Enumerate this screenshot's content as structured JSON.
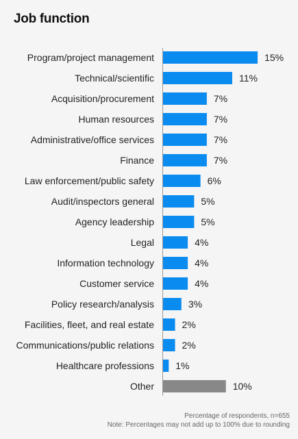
{
  "chart_data": {
    "type": "bar",
    "orientation": "horizontal",
    "title": "Job function",
    "categories": [
      "Program/project management",
      "Technical/scientific",
      "Acquisition/procurement",
      "Human resources",
      "Administrative/office services",
      "Finance",
      "Law enforcement/public safety",
      "Audit/inspectors general",
      "Agency leadership",
      "Legal",
      "Information technology",
      "Customer service",
      "Policy research/analysis",
      "Facilities, fleet, and real estate",
      "Communications/public relations",
      "Healthcare professions",
      "Other"
    ],
    "values": [
      15,
      11,
      7,
      7,
      7,
      7,
      6,
      5,
      5,
      4,
      4,
      4,
      3,
      2,
      2,
      1,
      10
    ],
    "value_labels": [
      "15%",
      "11%",
      "7%",
      "7%",
      "7%",
      "7%",
      "6%",
      "5%",
      "5%",
      "4%",
      "4%",
      "4%",
      "3%",
      "2%",
      "2%",
      "1%",
      "10%"
    ],
    "bar_colors": [
      "#0a8bf0",
      "#0a8bf0",
      "#0a8bf0",
      "#0a8bf0",
      "#0a8bf0",
      "#0a8bf0",
      "#0a8bf0",
      "#0a8bf0",
      "#0a8bf0",
      "#0a8bf0",
      "#0a8bf0",
      "#0a8bf0",
      "#0a8bf0",
      "#0a8bf0",
      "#0a8bf0",
      "#0a8bf0",
      "#888888"
    ],
    "xlim": [
      0,
      15.1
    ],
    "grid": false,
    "footnote": [
      "Percentage of respondents, n=655",
      "Note: Percentages may not add up to 100% due to rounding"
    ]
  }
}
